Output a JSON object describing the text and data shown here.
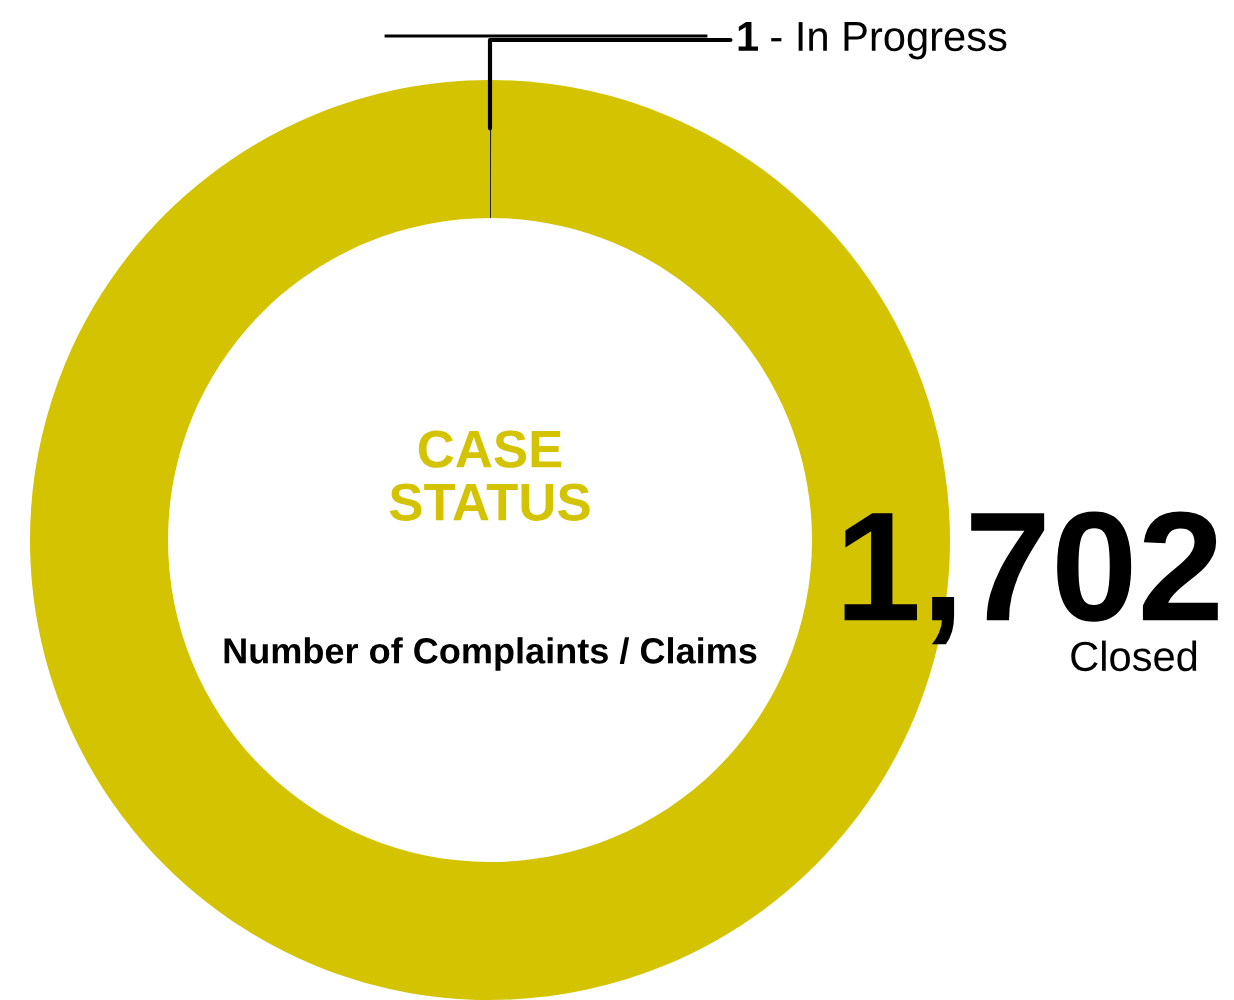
{
  "chart_data": {
    "type": "donut",
    "title": "CASE STATUS",
    "subtitle": "Number of Complaints / Claims",
    "categories": [
      "- In Progress",
      "Closed"
    ],
    "values": [
      1,
      1702
    ],
    "value_labels": [
      "1",
      "1,702"
    ],
    "colors": [
      "#222222",
      "#d3c300"
    ],
    "legend": false
  }
}
